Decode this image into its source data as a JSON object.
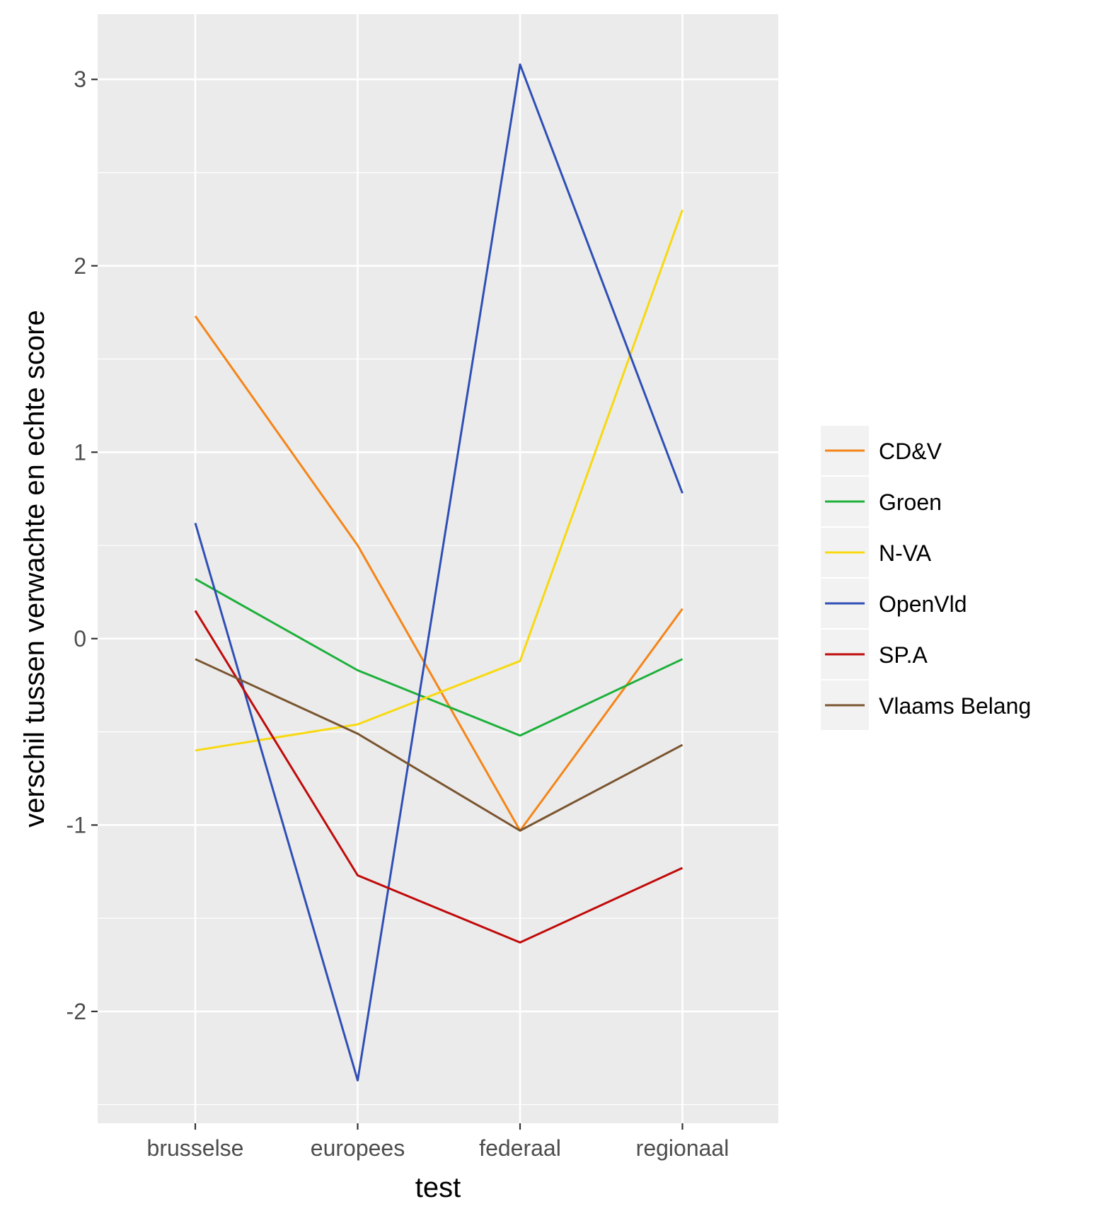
{
  "chart_data": {
    "type": "line",
    "xlabel": "test",
    "ylabel": "verschil tussen verwachte en echte score",
    "categories": [
      "brusselse",
      "europees",
      "federaal",
      "regionaal"
    ],
    "yticks": [
      -2,
      -1,
      0,
      1,
      2,
      3
    ],
    "ytick_labels": [
      "-2",
      "-1",
      "0",
      "1",
      "2",
      "3"
    ],
    "ylim": [
      -2.6,
      3.35
    ],
    "grid": true,
    "legend_position": "right",
    "series": [
      {
        "name": "CD&V",
        "color": "#F58518",
        "values": [
          1.73,
          0.5,
          -1.03,
          0.16
        ]
      },
      {
        "name": "Groen",
        "color": "#1DB03A",
        "values": [
          0.32,
          -0.17,
          -0.52,
          -0.11
        ]
      },
      {
        "name": "N-VA",
        "color": "#F8D90F",
        "values": [
          -0.6,
          -0.46,
          -0.12,
          2.3
        ]
      },
      {
        "name": "OpenVld",
        "color": "#2F4FB5",
        "values": [
          0.62,
          -2.37,
          3.08,
          0.78
        ]
      },
      {
        "name": "SP.A",
        "color": "#C00A0A",
        "values": [
          0.15,
          -1.27,
          -1.63,
          -1.23
        ]
      },
      {
        "name": "Vlaams Belang",
        "color": "#7A5530",
        "values": [
          -0.11,
          -0.51,
          -1.03,
          -0.57
        ]
      }
    ]
  }
}
